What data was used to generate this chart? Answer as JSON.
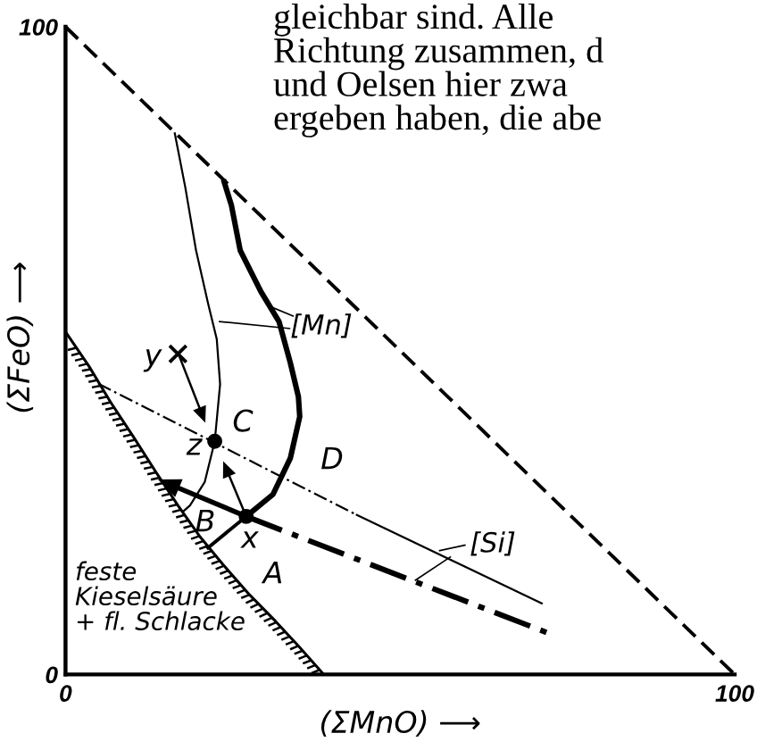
{
  "chart_data": {
    "type": "line",
    "xlabel": "(ΣMnO) ⟶",
    "ylabel": "(ΣFeO) ⟶",
    "xlim": [
      0,
      100
    ],
    "ylim": [
      0,
      100
    ],
    "xticks": [
      0,
      100
    ],
    "yticks": [
      0,
      100
    ],
    "series": [
      {
        "color": "#000000",
        "line_style": "solid",
        "x": [
          0,
          3.5,
          6.7,
          10.2,
          13.6,
          16.8,
          20.0,
          23.5,
          27.5,
          31.4,
          34.9,
          38.6
        ],
        "values": [
          52.9,
          47.6,
          42.1,
          36.6,
          31.1,
          26.1,
          21.4,
          17.0,
          12.3,
          8.2,
          4.3,
          0
        ]
      },
      {
        "color": "#000000",
        "line_style": "dashed",
        "x": [
          0,
          100
        ],
        "values": [
          100,
          0
        ]
      },
      {
        "color": "#000000",
        "line_style": "solid",
        "x": [
          16.3,
          17.9,
          19.5,
          21.3,
          22.6,
          23.1,
          22.3,
          20.8,
          18.6,
          17.5
        ],
        "values": [
          83.7,
          75.2,
          65.5,
          57.3,
          51.8,
          44.8,
          36.0,
          29.7,
          26.1,
          25.1
        ]
      },
      {
        "color": "#000000",
        "line_style": "solid",
        "x": [
          23.6,
          24.8,
          26.1,
          29.2,
          31.9,
          33.6,
          34.8,
          35.0,
          33.6,
          31.0,
          27.0
        ],
        "values": [
          76.4,
          72.4,
          65.5,
          59.1,
          54.5,
          48.1,
          42.9,
          39.8,
          33.4,
          27.8,
          24.4
        ]
      },
      {
        "color": "#000000",
        "line_style": "dashdot",
        "x": [
          4.9,
          43.4
        ],
        "values": [
          44.9,
          24.7
        ]
      },
      {
        "color": "#000000",
        "line_style": "solid",
        "x": [
          43.4,
          71.3
        ],
        "values": [
          24.7,
          10.9
        ]
      },
      {
        "color": "#000000",
        "line_style": "dashdot",
        "x": [
          27.0,
          72.6
        ],
        "values": [
          24.4,
          6.2
        ]
      },
      {
        "color": "#000000",
        "line_style": "solid",
        "x": [
          27.0,
          21.1
        ],
        "values": [
          24.4,
          19.4
        ]
      },
      {
        "color": "#000000",
        "line_style": "solid",
        "x": [
          22.9,
          33.6
        ],
        "values": [
          54.5,
          53.4
        ]
      },
      {
        "color": "#000000",
        "line_style": "solid",
        "x": [
          30.6,
          34.1
        ],
        "values": [
          56.8,
          55.3
        ]
      },
      {
        "color": "#000000",
        "line_style": "solid",
        "x": [
          55.8,
          59.8
        ],
        "values": [
          19.1,
          20.0
        ]
      },
      {
        "color": "#000000",
        "line_style": "solid",
        "x": [
          52.2,
          57.6
        ],
        "values": [
          14.5,
          18.2
        ]
      },
      {
        "type": "scatter",
        "marker": "cross",
        "color": "#000000",
        "x": [
          16.8
        ],
        "values": [
          49.5
        ]
      },
      {
        "type": "scatter",
        "marker": "circle",
        "color": "#000000",
        "x": [
          22.3,
          27.0
        ],
        "values": [
          36.0,
          24.4
        ]
      }
    ],
    "annotations": [
      "gleichbar sind. Alle\nRichtung zusammen, d\nund Oelsen hier zwa\nergeben haben, die abe",
      "[Mn]",
      {
        "text": "y",
        "x": 16.8,
        "y": 49.5
      },
      {
        "text": "z",
        "x": 22.3,
        "y": 36.0
      },
      "C",
      "D",
      "B",
      {
        "text": "x",
        "x": 27.0,
        "y": 24.4
      },
      "A",
      "[Si]",
      "feste\nKieselsäure\n+ fl. Schlacke"
    ]
  }
}
